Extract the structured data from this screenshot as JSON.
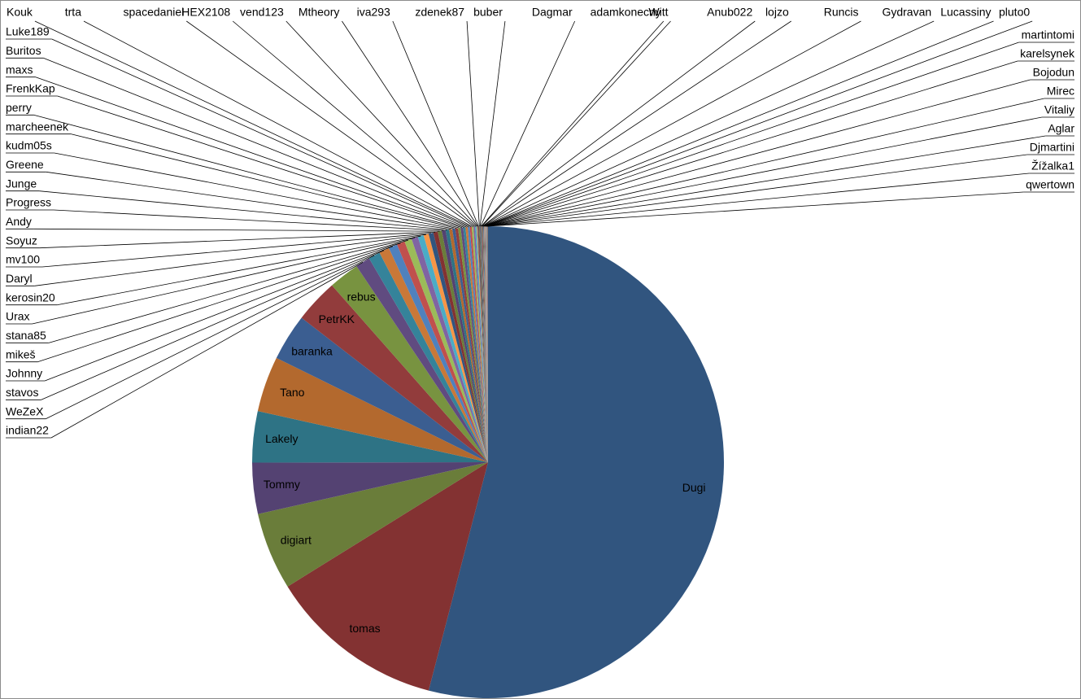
{
  "chart_data": {
    "type": "pie",
    "categories": [
      "Dugi",
      "tomas",
      "digiart",
      "Tommy",
      "Lakely",
      "Tano",
      "baranka",
      "PetrKK",
      "rebus",
      "indian22",
      "WeZeX",
      "stavos",
      "Johnny",
      "mikeš",
      "stana85",
      "Urax",
      "kerosin20",
      "Daryl",
      "mv100",
      "Soyuz",
      "Andy",
      "Progress",
      "Junge",
      "Greene",
      "kudm05s",
      "marcheenek",
      "perry",
      "FrenkKap",
      "maxs",
      "Buritos",
      "Luke189",
      "Kouk",
      "trta",
      "spacedaniel",
      "HEX2108",
      "vend123",
      "Mtheory",
      "iva293",
      "zdenek87",
      "buber",
      "Dagmar",
      "adamkonecny",
      "Witt",
      "Anub022",
      "lojzo",
      "Runcis",
      "Gydravan",
      "Lucassiny",
      "pluto0",
      "martintomi",
      "karelsynek",
      "Bojodun",
      "Mirec",
      "Vitaliy",
      "Aglar",
      "Djmartini",
      "Žížalka1",
      "qwertown"
    ],
    "values": [
      54,
      12.1,
      5.3,
      3.5,
      3.5,
      3.8,
      3.2,
      3.0,
      2.1,
      1.0,
      0.8,
      0.7,
      0.6,
      0.55,
      0.5,
      0.45,
      0.4,
      0.35,
      0.33,
      0.3,
      0.28,
      0.26,
      0.24,
      0.22,
      0.2,
      0.19,
      0.18,
      0.17,
      0.16,
      0.15,
      0.14,
      0.13,
      0.12,
      0.11,
      0.1,
      0.06,
      0.05,
      0.05,
      0.05,
      0.04,
      0.04,
      0.04,
      0.04,
      0.04,
      0.03,
      0.03,
      0.03,
      0.03,
      0.03,
      0.03,
      0.03,
      0.03,
      0.02,
      0.02,
      0.02,
      0.02,
      0.02,
      0.02
    ],
    "colors": [
      "#31557f",
      "#833232",
      "#6a7d3a",
      "#544272",
      "#2e7385",
      "#b3692e",
      "#3b5e91",
      "#923c3c",
      "#789340",
      "#604b80",
      "#35839a",
      "#c97838",
      "#4f81bd",
      "#c0504d",
      "#9bbb59",
      "#8064a2",
      "#4bacc6",
      "#f79646"
    ]
  }
}
